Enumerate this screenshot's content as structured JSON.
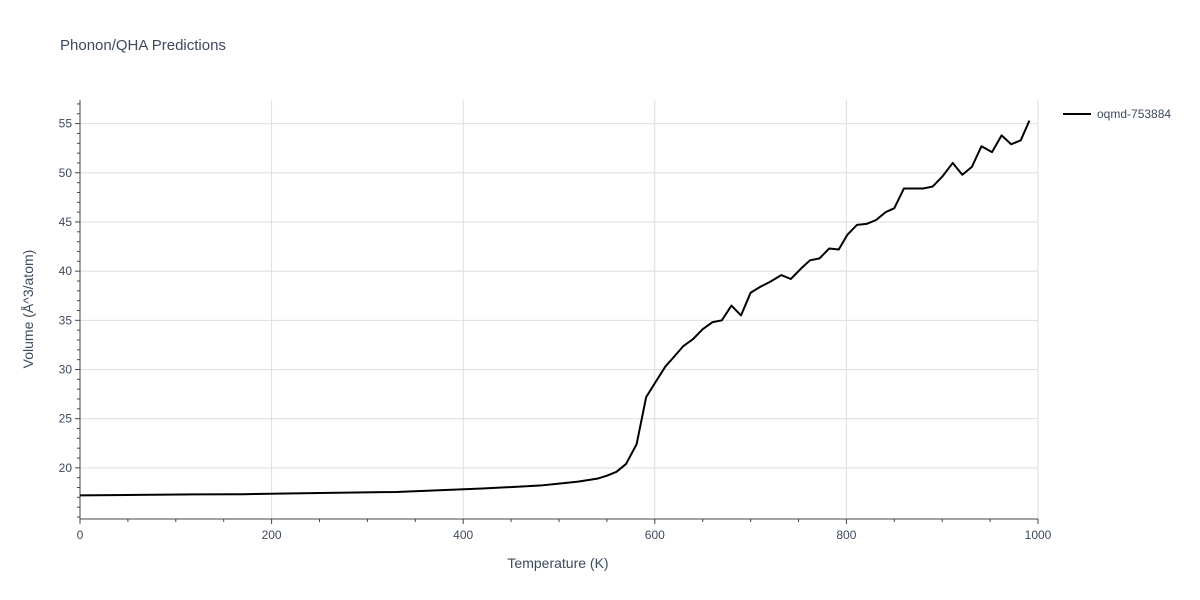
{
  "chart_data": {
    "type": "line",
    "title": "Phonon/QHA Predictions",
    "xlabel": "Temperature (K)",
    "ylabel": "Volume (Å^3/atom)",
    "xlim": [
      0,
      1000
    ],
    "ylim": [
      14.8,
      57.4
    ],
    "xticks": [
      0,
      200,
      400,
      600,
      800,
      1000
    ],
    "yticks": [
      20,
      25,
      30,
      35,
      40,
      45,
      50,
      55
    ],
    "grid": true,
    "legend_position": "top-right",
    "series": [
      {
        "name": "oqmd-753884",
        "color": "#000000",
        "x": [
          0,
          60,
          120,
          170,
          250,
          330,
          420,
          480,
          500,
          520,
          540,
          550,
          560,
          570,
          581,
          591,
          600,
          611,
          621,
          630,
          640,
          650,
          660,
          670,
          680,
          690,
          700,
          710,
          720,
          732,
          742,
          752,
          762,
          772,
          782,
          792,
          801,
          811,
          821,
          831,
          841,
          850,
          860,
          870,
          880,
          890,
          900,
          911,
          921,
          931,
          941,
          952,
          962,
          972,
          982,
          991
        ],
        "y": [
          17.2,
          17.25,
          17.3,
          17.32,
          17.45,
          17.55,
          17.9,
          18.2,
          18.4,
          18.6,
          18.9,
          19.2,
          19.6,
          20.4,
          22.4,
          27.2,
          28.6,
          30.3,
          31.4,
          32.4,
          33.1,
          34.1,
          34.8,
          35.0,
          36.5,
          35.5,
          37.8,
          38.4,
          38.9,
          39.6,
          39.2,
          40.2,
          41.1,
          41.3,
          42.3,
          42.2,
          43.7,
          44.7,
          44.8,
          45.2,
          46.0,
          46.4,
          48.4,
          48.4,
          48.4,
          48.6,
          49.6,
          51.0,
          49.8,
          50.6,
          52.7,
          52.1,
          53.8,
          52.9,
          53.3,
          55.3
        ]
      }
    ]
  }
}
